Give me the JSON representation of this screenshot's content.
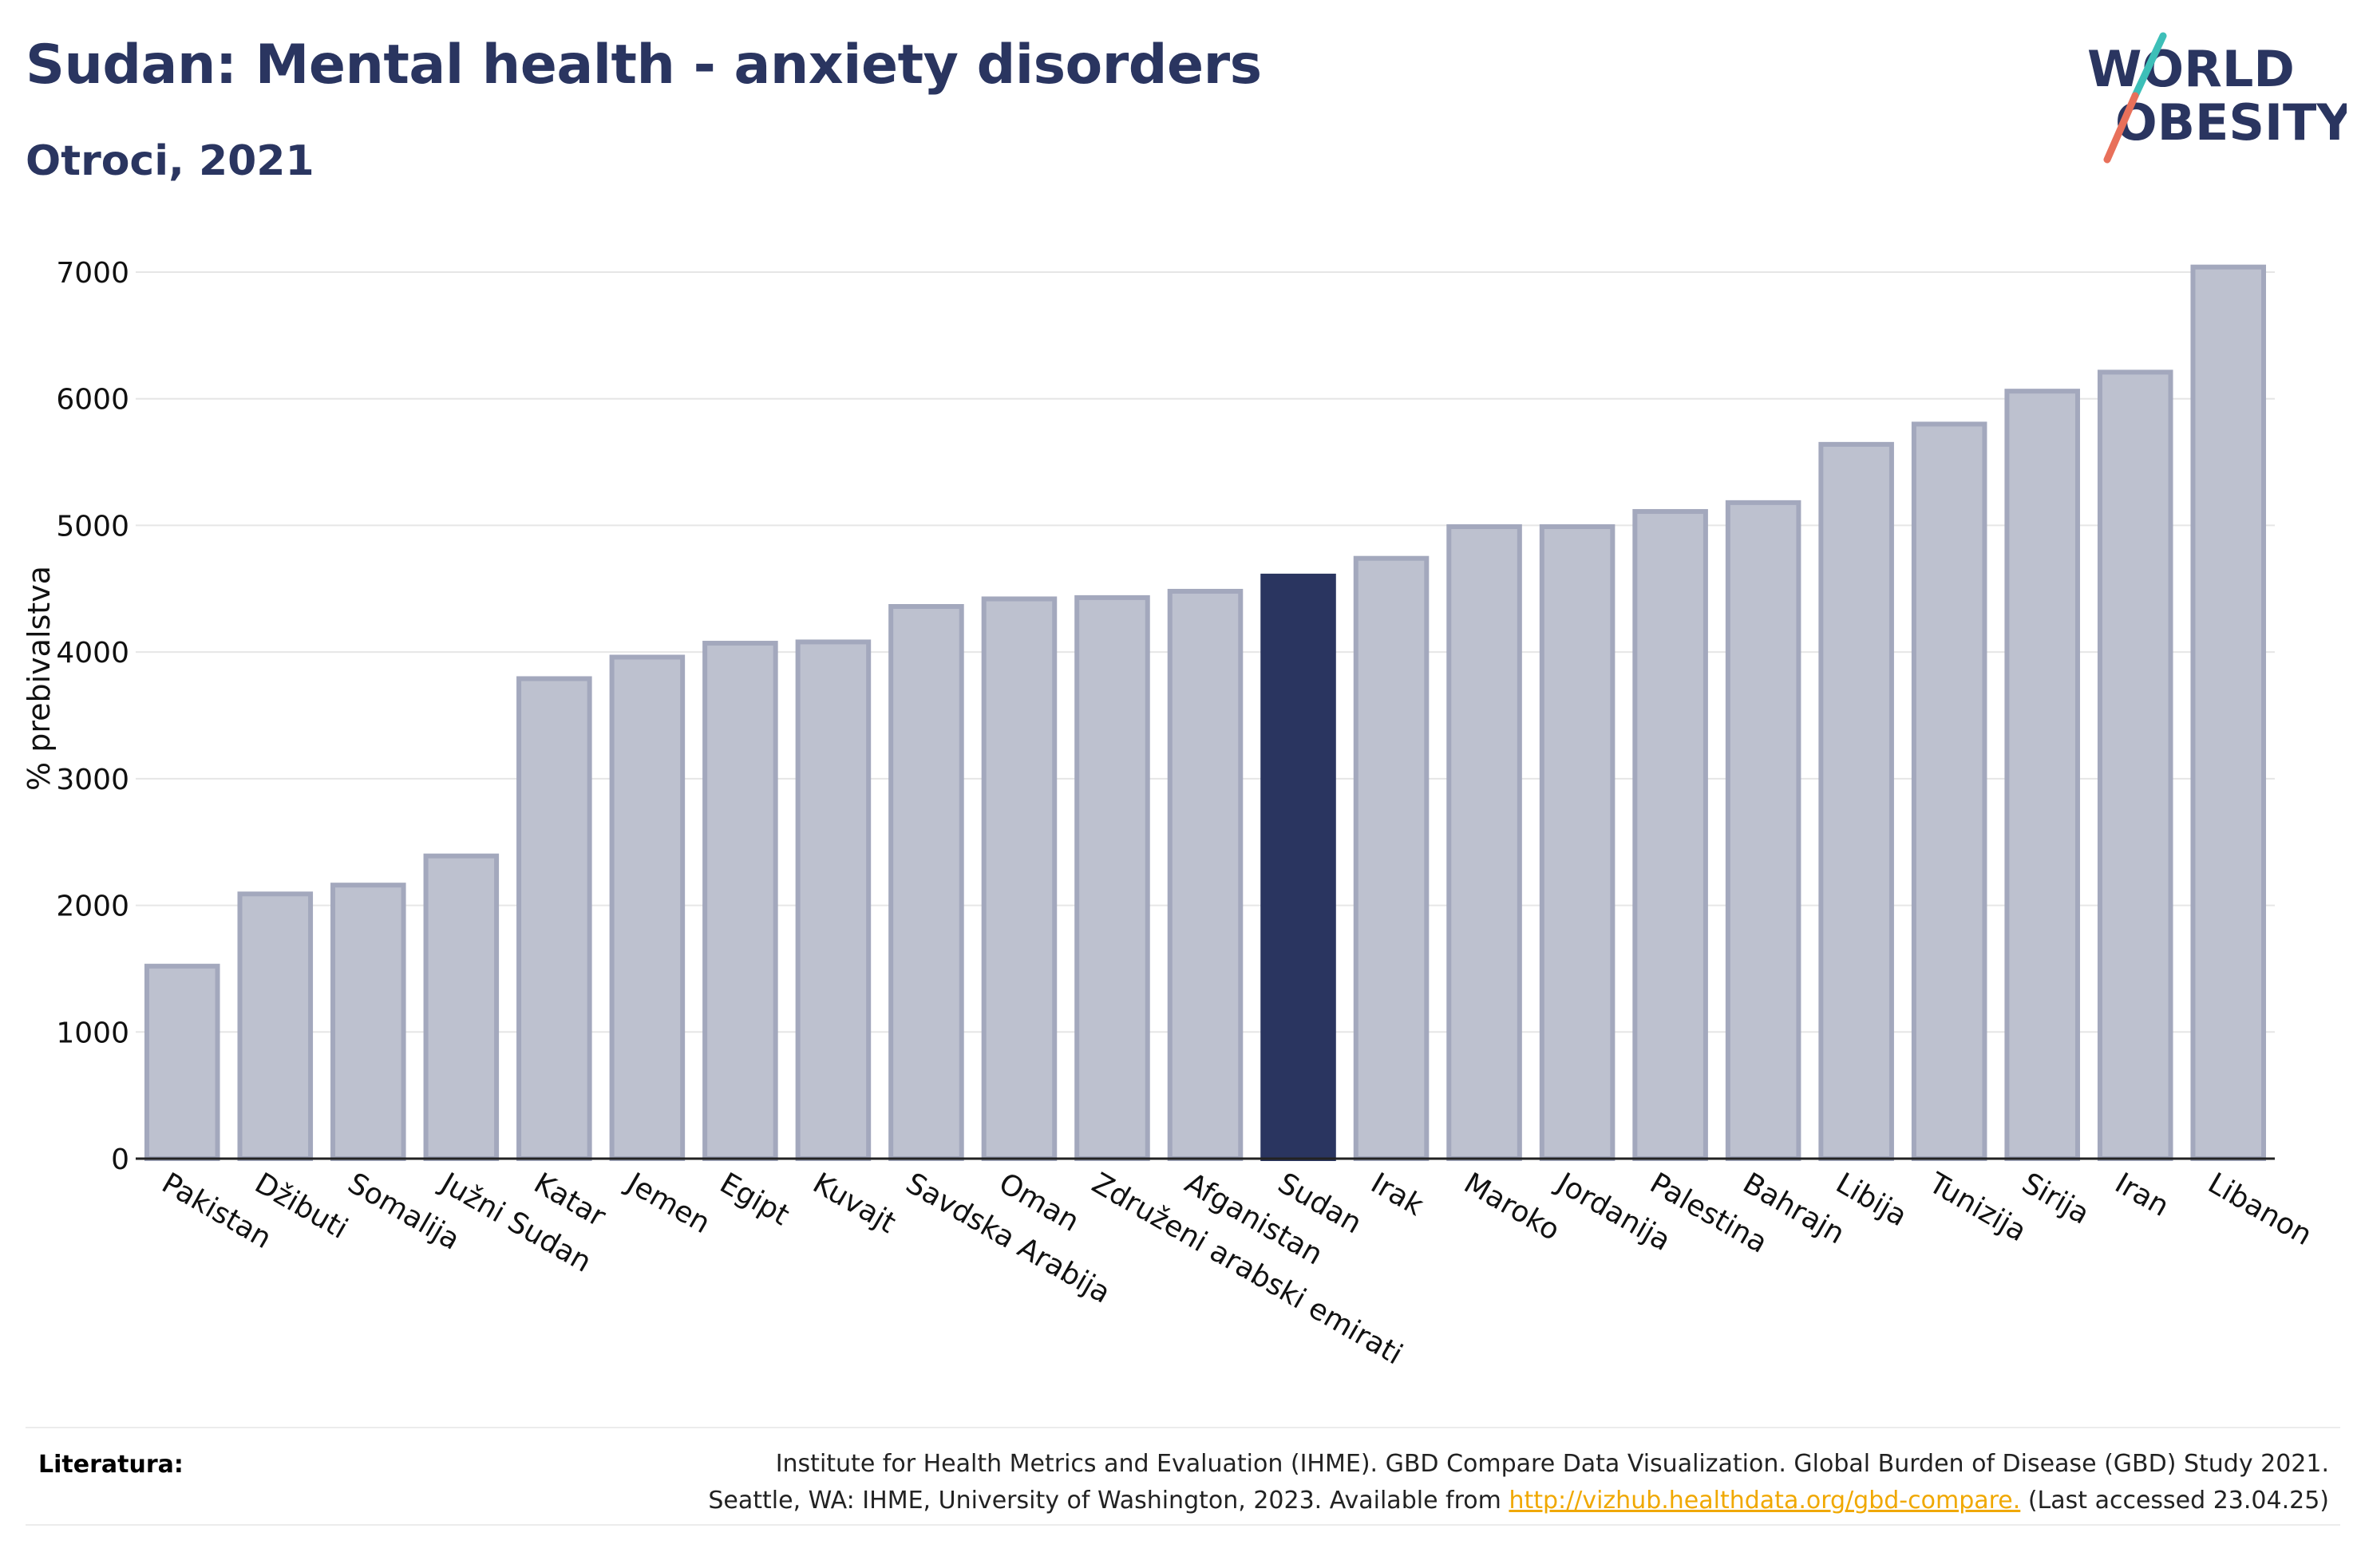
{
  "header": {
    "title": "Sudan: Mental health - anxiety disorders",
    "subtitle": "Otroci, 2021",
    "logo_line1": "WORLD",
    "logo_line2": "OBESITY"
  },
  "colors": {
    "title": "#2a3560",
    "highlight_bar": "#2a3560",
    "bar_fill": "#bdc1cf",
    "bar_stroke": "#a3a8bd",
    "logo_slash_top": "#3dbfb8",
    "logo_slash_bottom": "#e8705a",
    "link": "#f0a800"
  },
  "chart_data": {
    "type": "bar",
    "ylabel": "% prebivalstva",
    "xlabel": "",
    "ylim": [
      0,
      7000
    ],
    "yticks": [
      0,
      1000,
      2000,
      3000,
      4000,
      5000,
      6000,
      7000
    ],
    "grid": true,
    "highlight": "Sudan",
    "categories": [
      "Pakistan",
      "Džibuti",
      "Somalija",
      "Južni Sudan",
      "Katar",
      "Jemen",
      "Egipt",
      "Kuvajt",
      "Savdska Arabija",
      "Oman",
      "Združeni arabski emirati",
      "Afganistan",
      "Sudan",
      "Irak",
      "Maroko",
      "Jordanija",
      "Palestina",
      "Bahrajn",
      "Libija",
      "Tunizija",
      "Sirija",
      "Iran",
      "Libanon"
    ],
    "values": [
      1520,
      2090,
      2160,
      2390,
      3790,
      3960,
      4070,
      4080,
      4360,
      4420,
      4430,
      4480,
      4600,
      4740,
      4990,
      4990,
      5110,
      5180,
      5640,
      5800,
      6060,
      6210,
      7040
    ]
  },
  "footer": {
    "label": "Literatura:",
    "line1": "Institute for Health Metrics and Evaluation (IHME). GBD Compare Data Visualization. Global Burden of Disease (GBD) Study 2021.",
    "line2_before": "Seattle, WA: IHME, University of Washington, 2023. Available from",
    "link": "http://vizhub.healthdata.org/gbd-compare.",
    "line2_after": "(Last accessed 23.04.25)"
  }
}
